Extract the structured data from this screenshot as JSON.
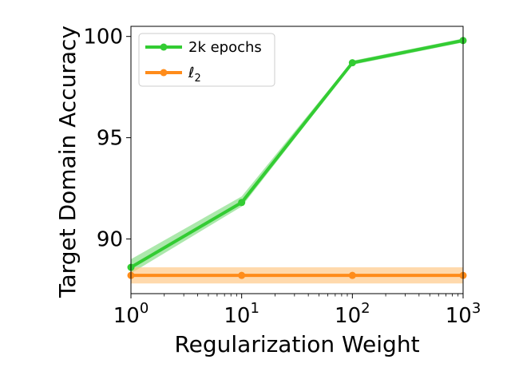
{
  "chart_data": {
    "type": "line",
    "title": "",
    "xlabel": "Regularization Weight",
    "ylabel": "Target Domain Accuracy",
    "x_scale": "log",
    "xlim": [
      1,
      1000
    ],
    "ylim": [
      87.3,
      100.5
    ],
    "x_ticks": [
      {
        "value": 1,
        "base": "10",
        "exp": "0"
      },
      {
        "value": 10,
        "base": "10",
        "exp": "1"
      },
      {
        "value": 100,
        "base": "10",
        "exp": "2"
      },
      {
        "value": 1000,
        "base": "10",
        "exp": "3"
      }
    ],
    "y_ticks": [
      {
        "value": 90,
        "label": "90"
      },
      {
        "value": 95,
        "label": "95"
      },
      {
        "value": 100,
        "label": "100"
      }
    ],
    "grid": false,
    "legend_position": "top-left",
    "series": [
      {
        "name": "2k epochs",
        "color": "#33cc33",
        "band_color": "#7fdc7f",
        "x": [
          1,
          10,
          100,
          1000
        ],
        "values": [
          88.6,
          91.8,
          98.7,
          99.8
        ],
        "lower": [
          88.3,
          91.6,
          98.6,
          99.7
        ],
        "upper": [
          89.0,
          92.1,
          98.8,
          99.9
        ]
      },
      {
        "name": "ℓ",
        "name_subscript": "2",
        "color": "#ff8c1a",
        "band_color": "#ffc57f",
        "x": [
          1,
          10,
          100,
          1000
        ],
        "values": [
          88.2,
          88.2,
          88.2,
          88.2
        ],
        "lower": [
          87.8,
          87.8,
          87.8,
          87.8
        ],
        "upper": [
          88.6,
          88.6,
          88.6,
          88.6
        ]
      }
    ]
  }
}
